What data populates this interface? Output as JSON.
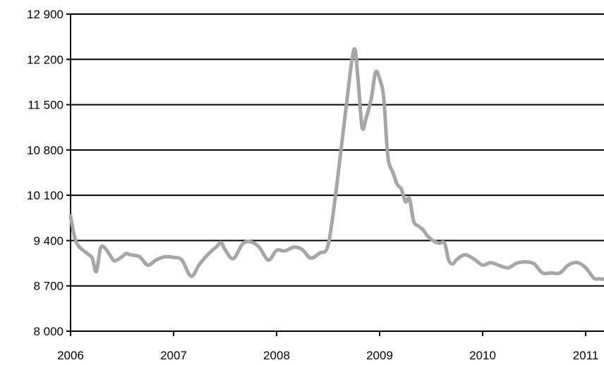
{
  "chart_data": {
    "type": "line",
    "title": "",
    "xlabel": "",
    "ylabel": "",
    "ylim": [
      8000,
      12900
    ],
    "xlim": [
      2006.0,
      2011.2
    ],
    "grid": "horizontal",
    "yticks": [
      8000,
      8700,
      9400,
      10100,
      10800,
      11500,
      12200,
      12900
    ],
    "ytick_labels": [
      "8 000",
      "8 700",
      "9 400",
      "10 100",
      "10 800",
      "11 500",
      "12 200",
      "12 900"
    ],
    "xticks": [
      2006,
      2007,
      2008,
      2009,
      2010,
      2011
    ],
    "xtick_labels": [
      "2006",
      "2007",
      "2008",
      "2009",
      "2010",
      "2011"
    ],
    "series": [
      {
        "color": "#a6a6a6",
        "x": [
          2006.0,
          2006.04,
          2006.08,
          2006.13,
          2006.17,
          2006.21,
          2006.25,
          2006.29,
          2006.33,
          2006.38,
          2006.42,
          2006.46,
          2006.5,
          2006.54,
          2006.58,
          2006.67,
          2006.75,
          2006.83,
          2006.92,
          2007.0,
          2007.08,
          2007.17,
          2007.25,
          2007.33,
          2007.42,
          2007.46,
          2007.5,
          2007.58,
          2007.67,
          2007.75,
          2007.83,
          2007.92,
          2008.0,
          2008.08,
          2008.17,
          2008.25,
          2008.33,
          2008.42,
          2008.5,
          2008.58,
          2008.67,
          2008.75,
          2008.79,
          2008.83,
          2008.87,
          2008.92,
          2008.96,
          2009.0,
          2009.04,
          2009.08,
          2009.13,
          2009.17,
          2009.21,
          2009.25,
          2009.29,
          2009.33,
          2009.38,
          2009.42,
          2009.46,
          2009.5,
          2009.54,
          2009.58,
          2009.63,
          2009.67,
          2009.71,
          2009.75,
          2009.83,
          2009.92,
          2010.0,
          2010.08,
          2010.17,
          2010.25,
          2010.33,
          2010.42,
          2010.5,
          2010.58,
          2010.67,
          2010.75,
          2010.83,
          2010.92,
          2011.0,
          2011.08,
          2011.13,
          2011.2
        ],
        "values": [
          9780,
          9450,
          9310,
          9240,
          9190,
          9130,
          8920,
          9280,
          9290,
          9180,
          9090,
          9110,
          9150,
          9200,
          9180,
          9150,
          9020,
          9100,
          9150,
          9140,
          9100,
          8850,
          9030,
          9180,
          9310,
          9370,
          9260,
          9120,
          9350,
          9380,
          9300,
          9100,
          9250,
          9240,
          9300,
          9260,
          9130,
          9210,
          9330,
          10200,
          11400,
          12350,
          11900,
          11150,
          11300,
          11600,
          12000,
          11900,
          11600,
          10700,
          10450,
          10270,
          10200,
          10000,
          10050,
          9700,
          9620,
          9570,
          9480,
          9420,
          9380,
          9360,
          9360,
          9100,
          9040,
          9110,
          9180,
          9110,
          9020,
          9060,
          9010,
          8980,
          9050,
          9070,
          9040,
          8900,
          8900,
          8900,
          9020,
          9060,
          8980,
          8820,
          8810,
          8800
        ]
      }
    ]
  }
}
